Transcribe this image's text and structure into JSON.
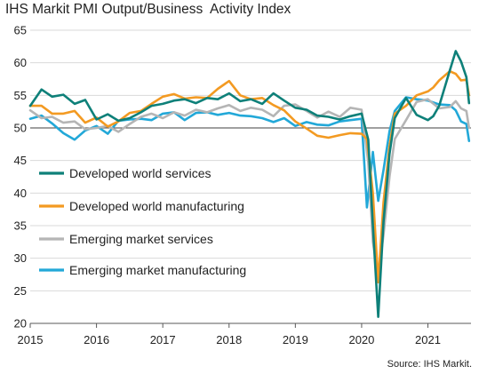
{
  "chart_data": {
    "type": "line",
    "title": "IHS Markit PMI Output/Business  Activity Index",
    "source": "Source: IHS Markit.",
    "ylim": [
      20,
      65
    ],
    "yticks": [
      20,
      25,
      30,
      35,
      40,
      45,
      50,
      55,
      60,
      65
    ],
    "xlim": [
      2015,
      2021.65
    ],
    "xticks": [
      2015,
      2016,
      2017,
      2018,
      2019,
      2020,
      2021
    ],
    "reference_line": 50,
    "legend_position": "left-center",
    "series": [
      {
        "name": "Developed world services",
        "color": "#0e8079",
        "values": [
          [
            2015.0,
            53.4
          ],
          [
            2015.17,
            55.9
          ],
          [
            2015.33,
            54.8
          ],
          [
            2015.5,
            55.1
          ],
          [
            2015.67,
            53.7
          ],
          [
            2015.83,
            54.3
          ],
          [
            2016.0,
            51.3
          ],
          [
            2016.17,
            52.1
          ],
          [
            2016.33,
            51.1
          ],
          [
            2016.5,
            51.5
          ],
          [
            2016.67,
            52.4
          ],
          [
            2016.83,
            53.4
          ],
          [
            2017.0,
            53.7
          ],
          [
            2017.17,
            54.2
          ],
          [
            2017.33,
            54.4
          ],
          [
            2017.5,
            53.8
          ],
          [
            2017.67,
            54.6
          ],
          [
            2017.83,
            54.4
          ],
          [
            2018.0,
            55.3
          ],
          [
            2018.17,
            54.1
          ],
          [
            2018.33,
            54.4
          ],
          [
            2018.5,
            53.7
          ],
          [
            2018.67,
            55.3
          ],
          [
            2018.83,
            54.2
          ],
          [
            2019.0,
            53.1
          ],
          [
            2019.17,
            52.8
          ],
          [
            2019.33,
            51.9
          ],
          [
            2019.5,
            51.7
          ],
          [
            2019.67,
            51.3
          ],
          [
            2019.83,
            51.8
          ],
          [
            2020.0,
            52.2
          ],
          [
            2020.1,
            48.2
          ],
          [
            2020.17,
            35.0
          ],
          [
            2020.25,
            21.0
          ],
          [
            2020.33,
            35.5
          ],
          [
            2020.42,
            46.0
          ],
          [
            2020.5,
            51.5
          ],
          [
            2020.67,
            54.6
          ],
          [
            2020.83,
            52.0
          ],
          [
            2021.0,
            51.2
          ],
          [
            2021.08,
            51.8
          ],
          [
            2021.17,
            53.4
          ],
          [
            2021.33,
            58.8
          ],
          [
            2021.42,
            61.8
          ],
          [
            2021.5,
            60.2
          ],
          [
            2021.58,
            57.8
          ],
          [
            2021.62,
            53.8
          ]
        ]
      },
      {
        "name": "Developed world manufacturing",
        "color": "#f39a22",
        "values": [
          [
            2015.0,
            53.4
          ],
          [
            2015.17,
            53.4
          ],
          [
            2015.33,
            52.2
          ],
          [
            2015.5,
            52.2
          ],
          [
            2015.67,
            52.6
          ],
          [
            2015.83,
            50.8
          ],
          [
            2016.0,
            51.6
          ],
          [
            2016.17,
            50.2
          ],
          [
            2016.33,
            51.0
          ],
          [
            2016.5,
            52.3
          ],
          [
            2016.67,
            52.6
          ],
          [
            2016.83,
            53.7
          ],
          [
            2017.0,
            54.8
          ],
          [
            2017.17,
            55.2
          ],
          [
            2017.33,
            54.5
          ],
          [
            2017.5,
            54.7
          ],
          [
            2017.67,
            54.6
          ],
          [
            2017.83,
            56.0
          ],
          [
            2018.0,
            57.2
          ],
          [
            2018.17,
            55.0
          ],
          [
            2018.33,
            54.4
          ],
          [
            2018.5,
            54.6
          ],
          [
            2018.67,
            53.5
          ],
          [
            2018.83,
            52.7
          ],
          [
            2019.0,
            51.0
          ],
          [
            2019.17,
            49.9
          ],
          [
            2019.33,
            48.8
          ],
          [
            2019.5,
            48.5
          ],
          [
            2019.67,
            48.9
          ],
          [
            2019.83,
            49.2
          ],
          [
            2020.0,
            49.1
          ],
          [
            2020.08,
            48.3
          ],
          [
            2020.17,
            40.0
          ],
          [
            2020.25,
            26.3
          ],
          [
            2020.33,
            38.5
          ],
          [
            2020.42,
            47.2
          ],
          [
            2020.5,
            52.2
          ],
          [
            2020.67,
            53.4
          ],
          [
            2020.83,
            55.0
          ],
          [
            2021.0,
            55.6
          ],
          [
            2021.08,
            56.2
          ],
          [
            2021.17,
            57.3
          ],
          [
            2021.33,
            58.7
          ],
          [
            2021.42,
            58.3
          ],
          [
            2021.5,
            57.3
          ],
          [
            2021.58,
            57.4
          ],
          [
            2021.62,
            55.0
          ]
        ]
      },
      {
        "name": "Emerging market services",
        "color": "#b5b5b5",
        "values": [
          [
            2015.0,
            52.7
          ],
          [
            2015.17,
            51.5
          ],
          [
            2015.33,
            51.7
          ],
          [
            2015.5,
            50.8
          ],
          [
            2015.67,
            51.0
          ],
          [
            2015.83,
            49.8
          ],
          [
            2016.0,
            50.0
          ],
          [
            2016.17,
            50.3
          ],
          [
            2016.33,
            49.4
          ],
          [
            2016.5,
            50.6
          ],
          [
            2016.67,
            51.7
          ],
          [
            2016.83,
            52.2
          ],
          [
            2017.0,
            51.5
          ],
          [
            2017.17,
            52.4
          ],
          [
            2017.33,
            51.9
          ],
          [
            2017.5,
            52.8
          ],
          [
            2017.67,
            52.4
          ],
          [
            2017.83,
            53.0
          ],
          [
            2018.0,
            53.5
          ],
          [
            2018.17,
            52.6
          ],
          [
            2018.33,
            53.1
          ],
          [
            2018.5,
            52.8
          ],
          [
            2018.67,
            51.8
          ],
          [
            2018.83,
            53.4
          ],
          [
            2019.0,
            53.6
          ],
          [
            2019.17,
            52.6
          ],
          [
            2019.33,
            51.6
          ],
          [
            2019.5,
            52.5
          ],
          [
            2019.67,
            51.7
          ],
          [
            2019.83,
            53.1
          ],
          [
            2020.0,
            52.8
          ],
          [
            2020.1,
            44.7
          ],
          [
            2020.17,
            32.5
          ],
          [
            2020.25,
            27.3
          ],
          [
            2020.33,
            33.5
          ],
          [
            2020.42,
            42.5
          ],
          [
            2020.5,
            48.3
          ],
          [
            2020.67,
            51.2
          ],
          [
            2020.83,
            54.0
          ],
          [
            2021.0,
            54.4
          ],
          [
            2021.17,
            53.0
          ],
          [
            2021.33,
            53.2
          ],
          [
            2021.42,
            54.1
          ],
          [
            2021.5,
            53.0
          ],
          [
            2021.58,
            52.6
          ],
          [
            2021.62,
            50.0
          ]
        ]
      },
      {
        "name": "Emerging market manufacturing",
        "color": "#22a8d8",
        "values": [
          [
            2015.0,
            51.4
          ],
          [
            2015.17,
            51.9
          ],
          [
            2015.33,
            50.7
          ],
          [
            2015.5,
            49.2
          ],
          [
            2015.67,
            48.2
          ],
          [
            2015.83,
            49.6
          ],
          [
            2016.0,
            50.3
          ],
          [
            2016.17,
            49.1
          ],
          [
            2016.33,
            51.1
          ],
          [
            2016.5,
            51.3
          ],
          [
            2016.67,
            51.4
          ],
          [
            2016.83,
            51.2
          ],
          [
            2017.0,
            52.2
          ],
          [
            2017.17,
            52.4
          ],
          [
            2017.33,
            51.2
          ],
          [
            2017.5,
            52.3
          ],
          [
            2017.67,
            52.4
          ],
          [
            2017.83,
            52.0
          ],
          [
            2018.0,
            52.3
          ],
          [
            2018.17,
            51.9
          ],
          [
            2018.33,
            51.8
          ],
          [
            2018.5,
            51.5
          ],
          [
            2018.67,
            50.9
          ],
          [
            2018.83,
            51.5
          ],
          [
            2019.0,
            50.3
          ],
          [
            2019.17,
            50.9
          ],
          [
            2019.33,
            50.5
          ],
          [
            2019.5,
            50.4
          ],
          [
            2019.67,
            51.0
          ],
          [
            2019.83,
            51.2
          ],
          [
            2020.0,
            51.4
          ],
          [
            2020.08,
            37.8
          ],
          [
            2020.17,
            46.3
          ],
          [
            2020.25,
            38.8
          ],
          [
            2020.33,
            43.5
          ],
          [
            2020.42,
            49.5
          ],
          [
            2020.5,
            52.6
          ],
          [
            2020.67,
            54.7
          ],
          [
            2020.83,
            54.4
          ],
          [
            2021.0,
            54.2
          ],
          [
            2021.17,
            53.6
          ],
          [
            2021.33,
            53.5
          ],
          [
            2021.42,
            52.7
          ],
          [
            2021.5,
            51.0
          ],
          [
            2021.58,
            50.6
          ],
          [
            2021.62,
            48.0
          ]
        ]
      }
    ]
  }
}
